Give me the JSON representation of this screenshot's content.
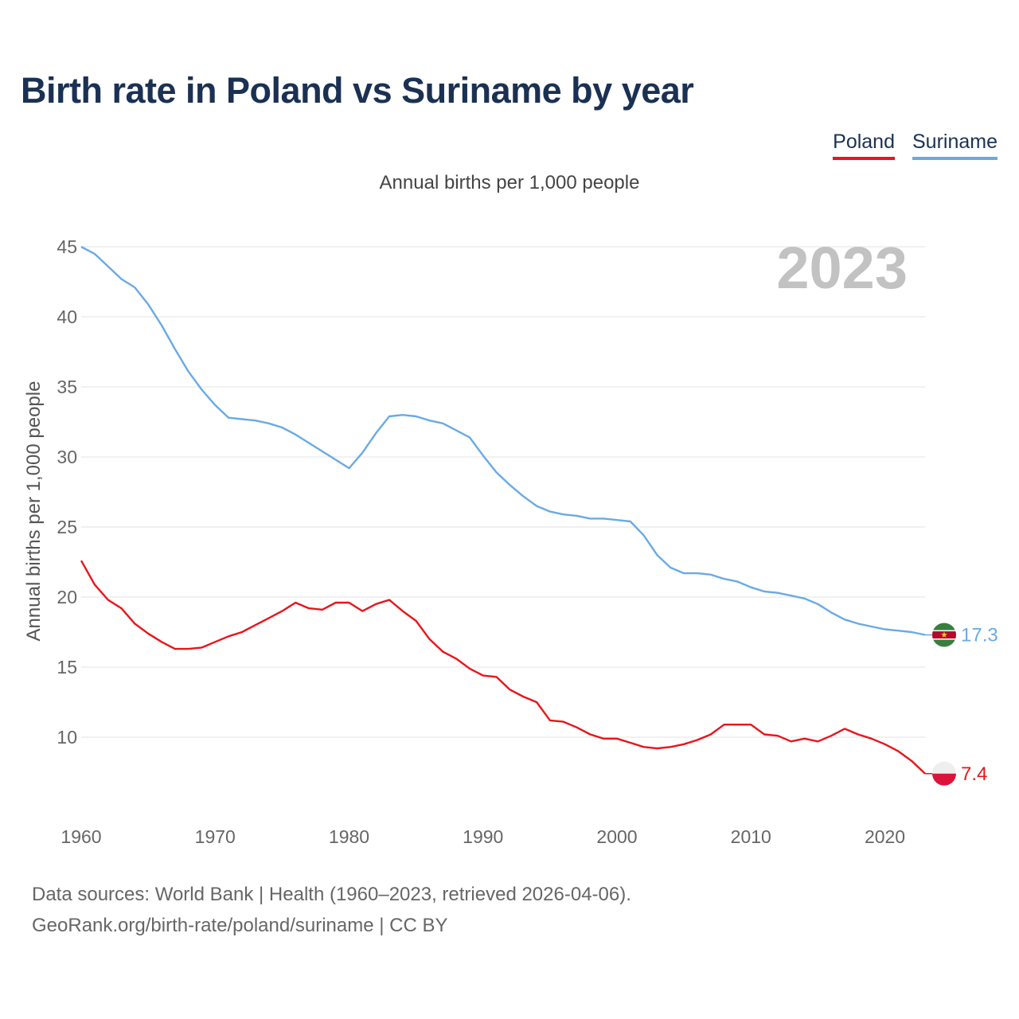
{
  "title": "Birth rate in Poland vs Suriname by year",
  "subtitle": "Annual births per 1,000 people",
  "legend": [
    {
      "label": "Poland",
      "color": "#e8151b"
    },
    {
      "label": "Suriname",
      "color": "#6aaae4"
    }
  ],
  "year_label": "2023",
  "footer": {
    "line1": "Data sources: World Bank | Health (1960–2023, retrieved 2026-04-06).",
    "line2": "GeoRank.org/birth-rate/poland/suriname | CC BY"
  },
  "end_labels": {
    "poland": "7.4",
    "suriname": "17.3"
  },
  "chart_data": {
    "type": "line",
    "title": "Birth rate in Poland vs Suriname by year",
    "ylabel": "Annual births per 1,000 people",
    "xlabel": "",
    "xlim": [
      1960,
      2023
    ],
    "ylim": [
      5,
      45
    ],
    "yticks": [
      10,
      15,
      20,
      25,
      30,
      35,
      40,
      45
    ],
    "xticks": [
      1960,
      1970,
      1980,
      1990,
      2000,
      2010,
      2020
    ],
    "grid": true,
    "x": [
      1960,
      1961,
      1962,
      1963,
      1964,
      1965,
      1966,
      1967,
      1968,
      1969,
      1970,
      1971,
      1972,
      1973,
      1974,
      1975,
      1976,
      1977,
      1978,
      1979,
      1980,
      1981,
      1982,
      1983,
      1984,
      1985,
      1986,
      1987,
      1988,
      1989,
      1990,
      1991,
      1992,
      1993,
      1994,
      1995,
      1996,
      1997,
      1998,
      1999,
      2000,
      2001,
      2002,
      2003,
      2004,
      2005,
      2006,
      2007,
      2008,
      2009,
      2010,
      2011,
      2012,
      2013,
      2014,
      2015,
      2016,
      2017,
      2018,
      2019,
      2020,
      2021,
      2022,
      2023
    ],
    "series": [
      {
        "name": "Poland",
        "color": "#e8151b",
        "values": [
          22.6,
          20.9,
          19.8,
          19.2,
          18.1,
          17.4,
          16.8,
          16.3,
          16.3,
          16.4,
          16.8,
          17.2,
          17.5,
          18.0,
          18.5,
          19.0,
          19.6,
          19.2,
          19.1,
          19.6,
          19.6,
          19.0,
          19.5,
          19.8,
          19.0,
          18.3,
          17.0,
          16.1,
          15.6,
          14.9,
          14.4,
          14.3,
          13.4,
          12.9,
          12.5,
          11.2,
          11.1,
          10.7,
          10.2,
          9.9,
          9.9,
          9.6,
          9.3,
          9.2,
          9.3,
          9.5,
          9.8,
          10.2,
          10.9,
          10.9,
          10.9,
          10.2,
          10.1,
          9.7,
          9.9,
          9.7,
          10.1,
          10.6,
          10.2,
          9.9,
          9.5,
          9.0,
          8.3,
          7.4
        ]
      },
      {
        "name": "Suriname",
        "color": "#6aaae4",
        "values": [
          45.0,
          44.5,
          43.6,
          42.7,
          42.1,
          40.9,
          39.4,
          37.7,
          36.1,
          34.8,
          33.7,
          32.8,
          32.7,
          32.6,
          32.4,
          32.1,
          31.6,
          31.0,
          30.4,
          29.8,
          29.2,
          30.3,
          31.7,
          32.9,
          33.0,
          32.9,
          32.6,
          32.4,
          31.9,
          31.4,
          30.1,
          28.9,
          28.0,
          27.2,
          26.5,
          26.1,
          25.9,
          25.8,
          25.6,
          25.6,
          25.5,
          25.4,
          24.4,
          23.0,
          22.1,
          21.7,
          21.7,
          21.6,
          21.3,
          21.1,
          20.7,
          20.4,
          20.3,
          20.1,
          19.9,
          19.5,
          18.9,
          18.4,
          18.1,
          17.9,
          17.7,
          17.6,
          17.5,
          17.3
        ]
      }
    ]
  }
}
